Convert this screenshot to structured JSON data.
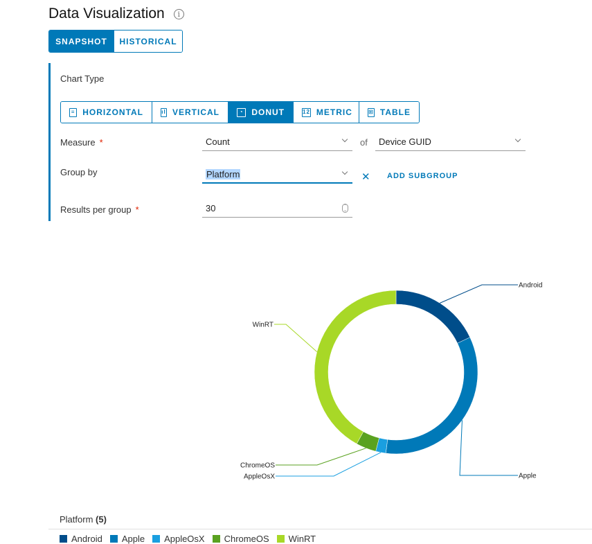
{
  "page": {
    "title": "Data Visualization"
  },
  "mode_tabs": [
    {
      "label": "SNAPSHOT",
      "active": true
    },
    {
      "label": "HISTORICAL",
      "active": false
    }
  ],
  "form": {
    "chart_type_label": "Chart Type",
    "chart_types": [
      {
        "label": "HORIZONTAL",
        "icon": "horizontal-bar-icon",
        "active": false
      },
      {
        "label": "VERTICAL",
        "icon": "vertical-bar-icon",
        "active": false
      },
      {
        "label": "DONUT",
        "icon": "donut-icon",
        "active": true
      },
      {
        "label": "METRIC",
        "icon": "metric-icon",
        "active": false
      },
      {
        "label": "TABLE",
        "icon": "table-icon",
        "active": false
      }
    ],
    "measure_label": "Measure",
    "measure_value": "Count",
    "of_text": "of",
    "field_value": "Device GUID",
    "groupby_label": "Group by",
    "groupby_value": "Platform",
    "add_subgroup": "ADD SUBGROUP",
    "results_label": "Results per group",
    "results_value": "30",
    "required_mark": "*"
  },
  "chart_data": {
    "type": "pie",
    "categories": [
      "Android",
      "Apple",
      "AppleOsX",
      "ChromeOS",
      "WinRT"
    ],
    "values": [
      18,
      34,
      2,
      4,
      42
    ],
    "colors": [
      "#004d8a",
      "#0079b8",
      "#1a9fe0",
      "#5aa220",
      "#a8d827"
    ]
  },
  "legend": {
    "title": "Platform",
    "count": "(5)"
  }
}
